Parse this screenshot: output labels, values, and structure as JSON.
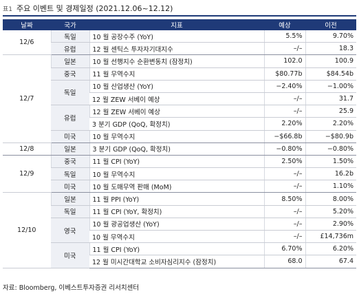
{
  "header": {
    "tag": "표1",
    "title": "주요 이벤트 및 경제일정 (2021.12.06~12.12)"
  },
  "table": {
    "columns": [
      "날짜",
      "국가",
      "지표",
      "예상",
      "이전"
    ],
    "groups": [
      {
        "date": "12/6",
        "countries": [
          {
            "country": "독일",
            "items": [
              {
                "indicator": "10 월 공장수주 (YoY)",
                "forecast": "5.5%",
                "previous": "9.70%"
              }
            ]
          },
          {
            "country": "유럽",
            "items": [
              {
                "indicator": "12 월 센틱스 투자자기대지수",
                "forecast": "–/–",
                "previous": "18.3"
              }
            ]
          }
        ]
      },
      {
        "date": "12/7",
        "countries": [
          {
            "country": "일본",
            "items": [
              {
                "indicator": "10 월 선행지수 순환변동치 (잠정치)",
                "forecast": "102.0",
                "previous": "100.9"
              }
            ]
          },
          {
            "country": "중국",
            "items": [
              {
                "indicator": "11 월 무역수지",
                "forecast": "$80.77b",
                "previous": "$84.54b"
              }
            ]
          },
          {
            "country": "독일",
            "items": [
              {
                "indicator": "10 월 산업생산 (YoY)",
                "forecast": "−2.40%",
                "previous": "−1.00%"
              },
              {
                "indicator": "12 월 ZEW 서베이 예상",
                "forecast": "–/–",
                "previous": "31.7"
              }
            ]
          },
          {
            "country": "유럽",
            "items": [
              {
                "indicator": "12 월 ZEW 서베이 예상",
                "forecast": "–/–",
                "previous": "25.9"
              },
              {
                "indicator": "3 분기 GDP (QoQ, 확정치)",
                "forecast": "2.20%",
                "previous": "2.20%"
              }
            ]
          },
          {
            "country": "미국",
            "items": [
              {
                "indicator": "10 월 무역수지",
                "forecast": "−$66.8b",
                "previous": "−$80.9b"
              }
            ]
          }
        ]
      },
      {
        "date": "12/8",
        "countries": [
          {
            "country": "일본",
            "items": [
              {
                "indicator": "3 분기 GDP (QoQ, 확정치)",
                "forecast": "−0.80%",
                "previous": "−0.80%"
              }
            ]
          }
        ]
      },
      {
        "date": "12/9",
        "countries": [
          {
            "country": "중국",
            "items": [
              {
                "indicator": "11 월 CPI (YoY)",
                "forecast": "2.50%",
                "previous": "1.50%"
              }
            ]
          },
          {
            "country": "독일",
            "items": [
              {
                "indicator": "10 월 무역수지",
                "forecast": "–/–",
                "previous": "16.2b"
              }
            ]
          },
          {
            "country": "미국",
            "items": [
              {
                "indicator": "10 월 도매무역 판매 (MoM)",
                "forecast": "–/–",
                "previous": "1.10%"
              }
            ]
          }
        ]
      },
      {
        "date": "12/10",
        "countries": [
          {
            "country": "일본",
            "items": [
              {
                "indicator": "11 월 PPI (YoY)",
                "forecast": "8.50%",
                "previous": "8.00%"
              }
            ]
          },
          {
            "country": "독일",
            "items": [
              {
                "indicator": "11 월 CPI (YoY, 확정치)",
                "forecast": "–/–",
                "previous": "5.20%"
              }
            ]
          },
          {
            "country": "영국",
            "items": [
              {
                "indicator": "10 월 광공업생산 (YoY)",
                "forecast": "–/–",
                "previous": "2.90%"
              },
              {
                "indicator": "10 월 무역수지",
                "forecast": "–/–",
                "previous": "£14,736m"
              }
            ]
          },
          {
            "country": "미국",
            "items": [
              {
                "indicator": "11 월 CPI (YoY)",
                "forecast": "6.70%",
                "previous": "6.20%"
              },
              {
                "indicator": "12 월 미시간대학교 소비자심리지수 (잠정치)",
                "forecast": "68.0",
                "previous": "67.4"
              }
            ]
          }
        ]
      }
    ]
  },
  "source": "자료: Bloomberg, 이베스트투자증권 리서치센터"
}
